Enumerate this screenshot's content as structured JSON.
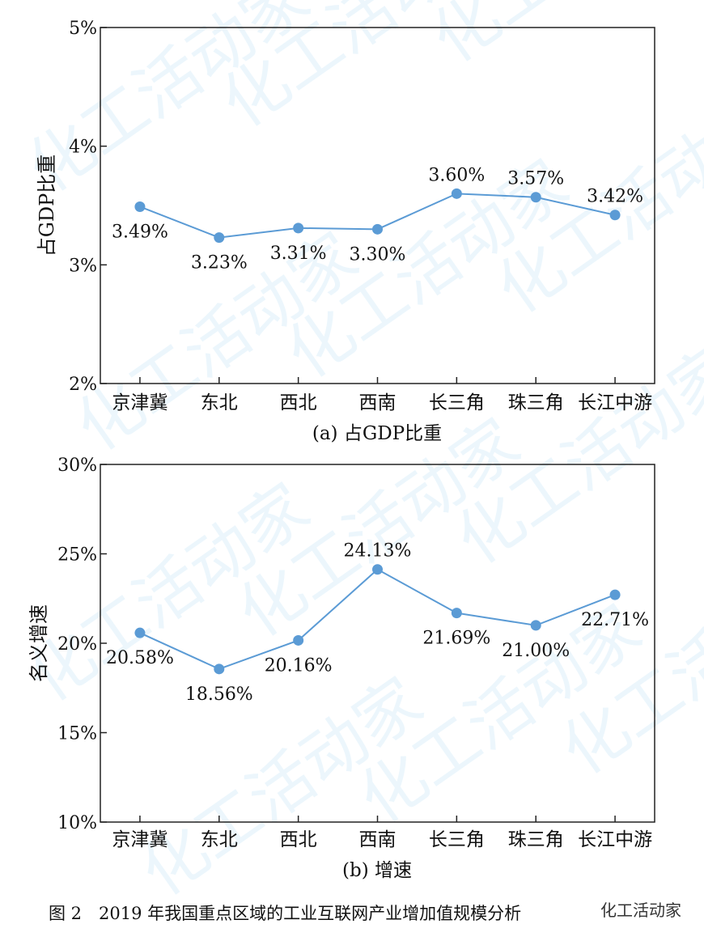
{
  "figure_caption": "图 2　2019 年我国重点区域的工业互联网产业增加值规模分析",
  "brand": "化工活动家",
  "watermark_text": "化工活动家",
  "series_color": "#5b9bd5",
  "chart_data": [
    {
      "type": "line",
      "caption": "(a)  占GDP比重",
      "ylabel": "占GDP比重",
      "categories": [
        "京津冀",
        "东北",
        "西北",
        "西南",
        "长三角",
        "珠三角",
        "长江中游"
      ],
      "values": [
        3.49,
        3.23,
        3.31,
        3.3,
        3.6,
        3.57,
        3.42
      ],
      "data_labels": [
        "3.49%",
        "3.23%",
        "3.31%",
        "3.30%",
        "3.60%",
        "3.57%",
        "3.42%"
      ],
      "label_position": [
        "below",
        "below",
        "below",
        "below",
        "above",
        "above",
        "above"
      ],
      "ylim": [
        2,
        5
      ],
      "yticks": [
        2,
        3,
        4,
        5
      ],
      "ytick_labels": [
        "2%",
        "3%",
        "4%",
        "5%"
      ],
      "grid": false
    },
    {
      "type": "line",
      "caption": "(b)  增速",
      "ylabel": "名义增速",
      "categories": [
        "京津冀",
        "东北",
        "西北",
        "西南",
        "长三角",
        "珠三角",
        "长江中游"
      ],
      "values": [
        20.58,
        18.56,
        20.16,
        24.13,
        21.69,
        21.0,
        22.71
      ],
      "data_labels": [
        "20.58%",
        "18.56%",
        "20.16%",
        "24.13%",
        "21.69%",
        "21.00%",
        "22.71%"
      ],
      "label_position": [
        "below",
        "below",
        "below",
        "above",
        "below",
        "below",
        "below"
      ],
      "ylim": [
        10,
        30
      ],
      "yticks": [
        10,
        15,
        20,
        25,
        30
      ],
      "ytick_labels": [
        "10%",
        "15%",
        "20%",
        "25%",
        "30%"
      ],
      "grid": false
    }
  ]
}
